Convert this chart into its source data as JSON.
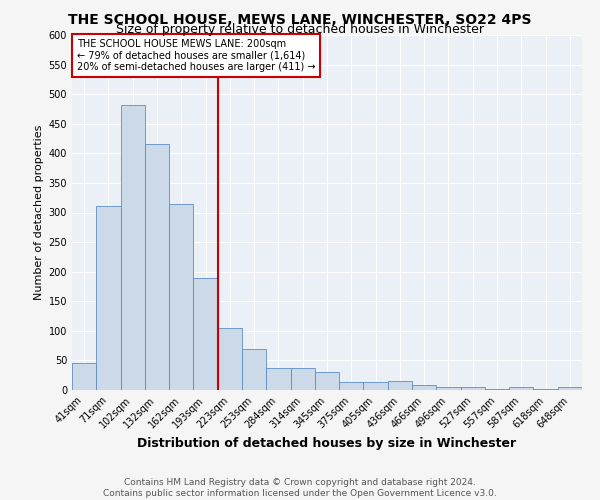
{
  "title": "THE SCHOOL HOUSE, MEWS LANE, WINCHESTER, SO22 4PS",
  "subtitle": "Size of property relative to detached houses in Winchester",
  "xlabel": "Distribution of detached houses by size in Winchester",
  "ylabel": "Number of detached properties",
  "categories": [
    "41sqm",
    "71sqm",
    "102sqm",
    "132sqm",
    "162sqm",
    "193sqm",
    "223sqm",
    "253sqm",
    "284sqm",
    "314sqm",
    "345sqm",
    "375sqm",
    "405sqm",
    "436sqm",
    "466sqm",
    "496sqm",
    "527sqm",
    "557sqm",
    "587sqm",
    "618sqm",
    "648sqm"
  ],
  "values": [
    46,
    311,
    481,
    415,
    314,
    190,
    105,
    69,
    37,
    38,
    31,
    14,
    14,
    15,
    9,
    5,
    5,
    1,
    5,
    1,
    5
  ],
  "bar_color": "#ccd9e8",
  "bar_edge_color": "#5b8ec4",
  "vline_color": "#cc0000",
  "vline_x_index": 5,
  "ylim": [
    0,
    600
  ],
  "yticks": [
    0,
    50,
    100,
    150,
    200,
    250,
    300,
    350,
    400,
    450,
    500,
    550,
    600
  ],
  "annotation_title": "THE SCHOOL HOUSE MEWS LANE: 200sqm",
  "annotation_line1": "← 79% of detached houses are smaller (1,614)",
  "annotation_line2": "20% of semi-detached houses are larger (411) →",
  "annotation_box_color": "#ffffff",
  "annotation_border_color": "#cc0000",
  "footer_line1": "Contains HM Land Registry data © Crown copyright and database right 2024.",
  "footer_line2": "Contains public sector information licensed under the Open Government Licence v3.0.",
  "bg_color": "#eaf0f6",
  "grid_color": "#ffffff",
  "fig_bg_color": "#f5f5f5",
  "title_fontsize": 10,
  "subtitle_fontsize": 9,
  "xlabel_fontsize": 9,
  "ylabel_fontsize": 8,
  "tick_fontsize": 7,
  "annotation_fontsize": 7,
  "footer_fontsize": 6.5
}
